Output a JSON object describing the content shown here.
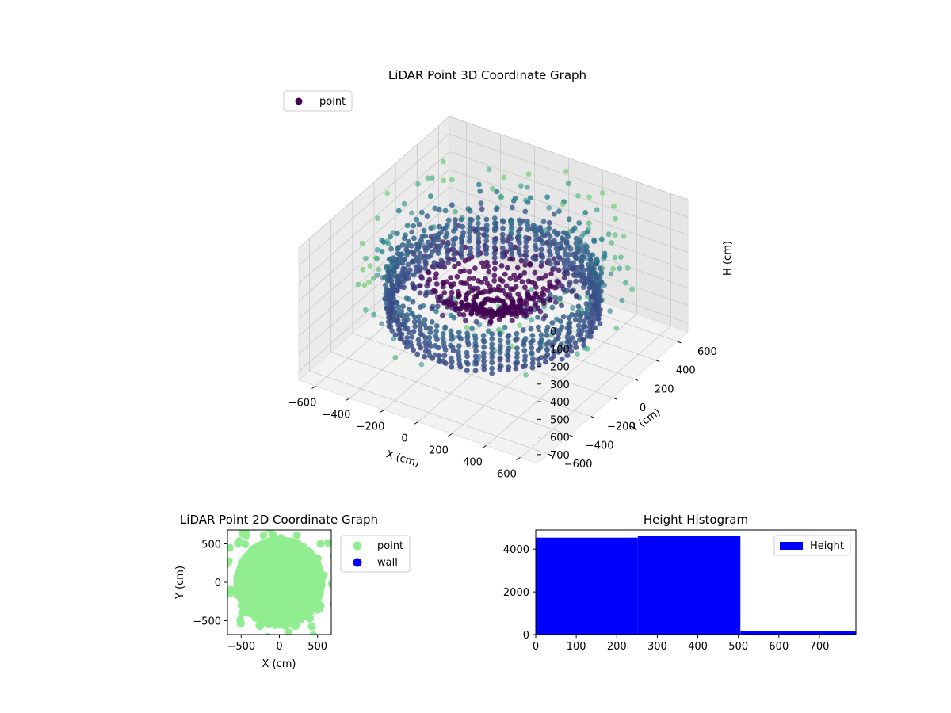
{
  "chart_data": [
    {
      "type": "scatter",
      "projection": "3d",
      "title": "LiDAR Point 3D Coordinate Graph",
      "xlabel": "X (cm)",
      "ylabel": "Y (cm)",
      "zlabel": "H (cm)",
      "xlim": [
        -700,
        700
      ],
      "ylim": [
        -700,
        700
      ],
      "zlim": [
        0,
        750
      ],
      "z_inverted": true,
      "xticks": [
        -600,
        -400,
        -200,
        0,
        200,
        400,
        600
      ],
      "yticks": [
        -600,
        -400,
        -200,
        0,
        200,
        400,
        600
      ],
      "zticks": [
        0,
        100,
        200,
        300,
        400,
        500,
        600,
        700
      ],
      "grid": true,
      "colormap": "viridis",
      "legend": {
        "entries": [
          "point"
        ],
        "position": "upper-left"
      },
      "series": [
        {
          "name": "point",
          "kind": "ring-wall",
          "radius_cm": 520,
          "height_range_cm": [
            300,
            520
          ],
          "approx_count": 4500
        },
        {
          "name": "point",
          "kind": "radial-spokes",
          "inner_radius_cm": 60,
          "outer_radius_cm": 560,
          "height_range_cm": [
            100,
            500
          ],
          "approx_count": 4600
        },
        {
          "name": "point",
          "kind": "sparse-outliers",
          "radius_range_cm": [
            550,
            700
          ],
          "height_range_cm": [
            0,
            450
          ],
          "approx_count": 150
        }
      ]
    },
    {
      "type": "scatter",
      "title": "LiDAR Point 2D Coordinate Graph",
      "xlabel": "X (cm)",
      "ylabel": "Y (cm)",
      "xlim": [
        -680,
        680
      ],
      "ylim": [
        -680,
        680
      ],
      "xticks": [
        -500,
        0,
        500
      ],
      "yticks": [
        -500,
        0,
        500
      ],
      "legend": {
        "entries": [
          "point",
          "wall"
        ],
        "position": "outside-right"
      },
      "series": [
        {
          "name": "point",
          "color": "#90ee90",
          "shape": "filled disc of radius ~560 cm plus scattered outliers"
        },
        {
          "name": "wall",
          "color": "#0000ff",
          "points": []
        }
      ]
    },
    {
      "type": "bar",
      "subtype": "histogram",
      "title": "Height Histogram",
      "xlim": [
        0,
        790
      ],
      "ylim": [
        0,
        4900
      ],
      "xticks": [
        0,
        100,
        200,
        300,
        400,
        500,
        600,
        700
      ],
      "yticks": [
        0,
        2000,
        4000
      ],
      "color": "#0000ff",
      "legend": {
        "entries": [
          "Height"
        ],
        "position": "top-right"
      },
      "bins": [
        {
          "x0": 0,
          "x1": 252,
          "count": 4540
        },
        {
          "x0": 252,
          "x1": 505,
          "count": 4640
        },
        {
          "x0": 505,
          "x1": 790,
          "count": 150
        }
      ]
    }
  ]
}
